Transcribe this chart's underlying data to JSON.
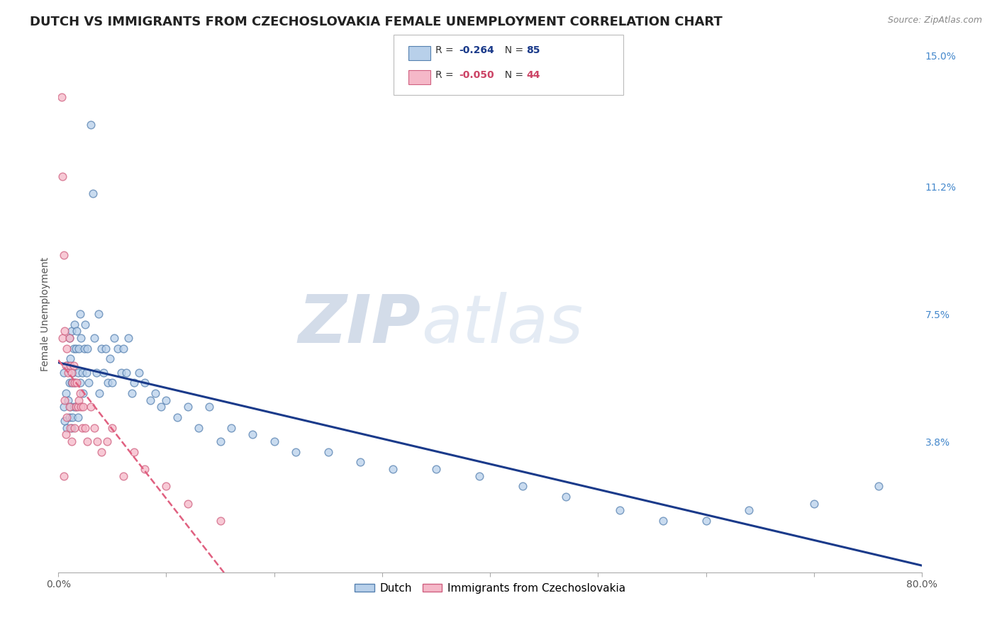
{
  "title": "DUTCH VS IMMIGRANTS FROM CZECHOSLOVAKIA FEMALE UNEMPLOYMENT CORRELATION CHART",
  "source": "Source: ZipAtlas.com",
  "ylabel": "Female Unemployment",
  "xlim": [
    0.0,
    0.8
  ],
  "ylim": [
    0.0,
    0.15
  ],
  "yticks_right": [
    0.038,
    0.075,
    0.112,
    0.15
  ],
  "ytick_labels_right": [
    "3.8%",
    "7.5%",
    "11.2%",
    "15.0%"
  ],
  "watermark": "ZIPatlas",
  "dutch_color": "#b8d0ea",
  "czech_color": "#f5b8c8",
  "dutch_edge": "#5580b0",
  "czech_edge": "#d06080",
  "background_color": "#ffffff",
  "grid_color": "#dddddd",
  "title_fontsize": 13,
  "axis_label_fontsize": 10,
  "tick_fontsize": 10,
  "marker_size": 60,
  "dutch_x": [
    0.005,
    0.005,
    0.006,
    0.007,
    0.008,
    0.008,
    0.009,
    0.01,
    0.01,
    0.01,
    0.011,
    0.011,
    0.012,
    0.012,
    0.012,
    0.013,
    0.013,
    0.014,
    0.014,
    0.015,
    0.015,
    0.016,
    0.016,
    0.017,
    0.018,
    0.018,
    0.019,
    0.02,
    0.02,
    0.021,
    0.022,
    0.023,
    0.024,
    0.025,
    0.026,
    0.027,
    0.028,
    0.03,
    0.032,
    0.033,
    0.035,
    0.037,
    0.038,
    0.04,
    0.042,
    0.044,
    0.046,
    0.048,
    0.05,
    0.052,
    0.055,
    0.058,
    0.06,
    0.063,
    0.065,
    0.068,
    0.07,
    0.075,
    0.08,
    0.085,
    0.09,
    0.095,
    0.1,
    0.11,
    0.12,
    0.13,
    0.14,
    0.15,
    0.16,
    0.18,
    0.2,
    0.22,
    0.25,
    0.28,
    0.31,
    0.35,
    0.39,
    0.43,
    0.47,
    0.52,
    0.56,
    0.6,
    0.64,
    0.7,
    0.76
  ],
  "dutch_y": [
    0.058,
    0.048,
    0.044,
    0.052,
    0.06,
    0.042,
    0.05,
    0.068,
    0.055,
    0.045,
    0.062,
    0.048,
    0.055,
    0.07,
    0.042,
    0.058,
    0.045,
    0.065,
    0.048,
    0.072,
    0.055,
    0.065,
    0.048,
    0.07,
    0.058,
    0.045,
    0.065,
    0.075,
    0.055,
    0.068,
    0.058,
    0.052,
    0.065,
    0.072,
    0.058,
    0.065,
    0.055,
    0.13,
    0.11,
    0.068,
    0.058,
    0.075,
    0.052,
    0.065,
    0.058,
    0.065,
    0.055,
    0.062,
    0.055,
    0.068,
    0.065,
    0.058,
    0.065,
    0.058,
    0.068,
    0.052,
    0.055,
    0.058,
    0.055,
    0.05,
    0.052,
    0.048,
    0.05,
    0.045,
    0.048,
    0.042,
    0.048,
    0.038,
    0.042,
    0.04,
    0.038,
    0.035,
    0.035,
    0.032,
    0.03,
    0.03,
    0.028,
    0.025,
    0.022,
    0.018,
    0.015,
    0.015,
    0.018,
    0.02,
    0.025
  ],
  "czech_x": [
    0.003,
    0.004,
    0.004,
    0.005,
    0.005,
    0.006,
    0.006,
    0.007,
    0.007,
    0.008,
    0.008,
    0.009,
    0.01,
    0.01,
    0.011,
    0.011,
    0.012,
    0.012,
    0.013,
    0.014,
    0.015,
    0.015,
    0.016,
    0.017,
    0.018,
    0.019,
    0.02,
    0.021,
    0.022,
    0.023,
    0.025,
    0.027,
    0.03,
    0.033,
    0.036,
    0.04,
    0.045,
    0.05,
    0.06,
    0.07,
    0.08,
    0.1,
    0.12,
    0.15
  ],
  "czech_y": [
    0.138,
    0.115,
    0.068,
    0.092,
    0.028,
    0.07,
    0.05,
    0.06,
    0.04,
    0.065,
    0.045,
    0.058,
    0.068,
    0.048,
    0.06,
    0.042,
    0.058,
    0.038,
    0.055,
    0.06,
    0.055,
    0.042,
    0.048,
    0.055,
    0.048,
    0.05,
    0.052,
    0.048,
    0.042,
    0.048,
    0.042,
    0.038,
    0.048,
    0.042,
    0.038,
    0.035,
    0.038,
    0.042,
    0.028,
    0.035,
    0.03,
    0.025,
    0.02,
    0.015
  ],
  "dutch_line_color": "#1a3a8a",
  "czech_line_color": "#e06080",
  "dutch_line_start_x": 0.0,
  "dutch_line_end_x": 0.8,
  "czech_line_start_x": 0.0,
  "czech_line_end_x": 0.8
}
